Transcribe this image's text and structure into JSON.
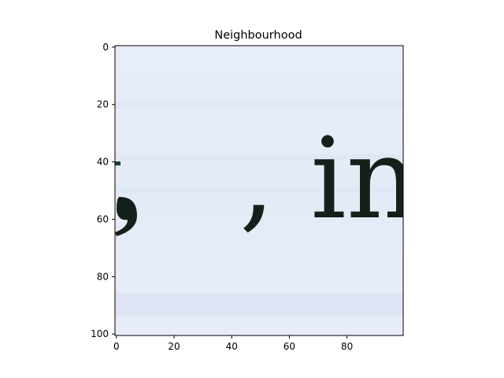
{
  "chart_data": {
    "type": "heatmap",
    "title": "Neighbourhood",
    "xlabel": "",
    "ylabel": "",
    "xlim": [
      0,
      100
    ],
    "ylim": [
      100,
      0
    ],
    "x_ticks": [
      0,
      20,
      40,
      60,
      80
    ],
    "y_ticks": [
      0,
      20,
      40,
      60,
      80,
      100
    ],
    "x_tick_labels": [
      "0",
      "20",
      "40",
      "60",
      "80"
    ],
    "y_tick_labels": [
      "0",
      "20",
      "40",
      "60",
      "80",
      "100"
    ],
    "grid": false,
    "image_text": [
      ", inf"
    ],
    "colors": {
      "background": "#e6ecf8",
      "ink": "#15201a"
    }
  }
}
